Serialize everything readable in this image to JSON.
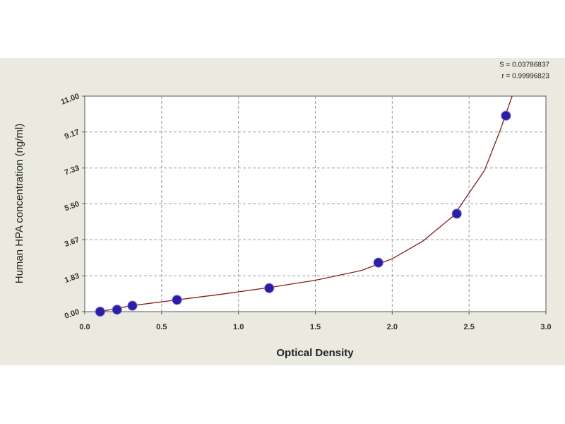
{
  "chart_data": {
    "type": "scatter",
    "xlabel": "Optical Density",
    "ylabel": "Human HPA concentration (ng/ml)",
    "annotations": [
      "S = 0.03786837",
      "r = 0.99996823"
    ],
    "xlim": [
      0,
      3
    ],
    "ylim": [
      0,
      11
    ],
    "xticks": [
      {
        "value": 0,
        "label": "0.0"
      },
      0.5,
      {
        "value": 1,
        "label": "1.0"
      },
      1.5,
      {
        "value": 2,
        "label": "2.0"
      },
      2.5,
      {
        "value": 3,
        "label": "3.0"
      }
    ],
    "yticks": [
      {
        "value": 0,
        "label": "0.00"
      },
      1.83,
      3.67,
      {
        "value": 5.5,
        "label": "5.50"
      },
      7.33,
      9.17,
      {
        "value": 11,
        "label": "11.00"
      }
    ],
    "grid": true,
    "series": [
      {
        "type": "scatter",
        "color": "#2a1ea8",
        "x": [
          0.1,
          0.21,
          0.31,
          0.6,
          1.2,
          1.91,
          2.42,
          2.74
        ],
        "values": [
          0,
          0.1,
          0.3,
          0.6,
          1.2,
          2.5,
          5.0,
          10.0
        ]
      },
      {
        "type": "line",
        "color": "#8b1a1a",
        "x": [
          0.1,
          0.3,
          0.6,
          0.9,
          1.2,
          1.5,
          1.8,
          2.0,
          2.2,
          2.4,
          2.6,
          2.7,
          2.78
        ],
        "values": [
          0,
          0.3,
          0.6,
          0.9,
          1.23,
          1.6,
          2.1,
          2.7,
          3.6,
          4.9,
          7.2,
          9.2,
          11.0
        ]
      }
    ]
  }
}
